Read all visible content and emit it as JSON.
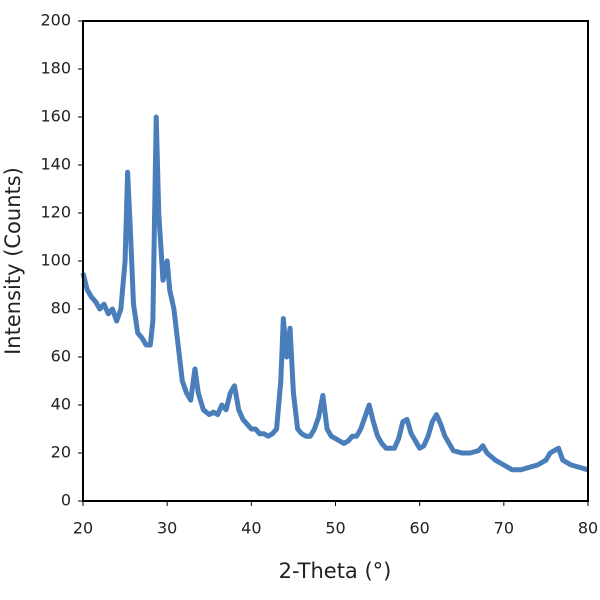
{
  "chart_data": {
    "type": "line",
    "x_label": "2-Theta (°)",
    "y_label": "Intensity (Counts)",
    "xlim": [
      20,
      80
    ],
    "xticks": [
      20,
      30,
      40,
      50,
      60,
      70,
      80
    ],
    "ylim": [
      0,
      200
    ],
    "yticks": [
      0,
      20,
      40,
      60,
      80,
      100,
      120,
      140,
      160,
      180,
      200
    ],
    "grid": false,
    "x": [
      20,
      20.5,
      21,
      21.5,
      22,
      22.5,
      23,
      23.5,
      24,
      24.5,
      25,
      25.3,
      25.6,
      26,
      26.5,
      27,
      27.5,
      28,
      28.3,
      28.7,
      29,
      29.5,
      30,
      30.3,
      30.8,
      31.3,
      31.8,
      32.3,
      32.8,
      33.3,
      33.7,
      34.3,
      35,
      35.5,
      36,
      36.5,
      37,
      37.5,
      38,
      38.5,
      39,
      39.5,
      40,
      40.5,
      41,
      41.5,
      42,
      42.5,
      43,
      43.5,
      43.8,
      44.2,
      44.6,
      45,
      45.5,
      46,
      46.5,
      47,
      47.5,
      48,
      48.5,
      49,
      49.5,
      50,
      50.5,
      51,
      51.5,
      52,
      52.5,
      53,
      53.5,
      54,
      54.5,
      55,
      55.5,
      56,
      56.5,
      57,
      57.5,
      58,
      58.5,
      59,
      59.5,
      60,
      60.5,
      61,
      61.5,
      62,
      62.5,
      63,
      63.5,
      64,
      65,
      66,
      67,
      67.5,
      68,
      69,
      70,
      71,
      72,
      73,
      74,
      75,
      75.5,
      76,
      76.5,
      77,
      78,
      79,
      80
    ],
    "series": [
      {
        "color": "#4a7ebb",
        "values": [
          95,
          88,
          85,
          83,
          80,
          82,
          78,
          80,
          75,
          80,
          100,
          137,
          115,
          82,
          70,
          68,
          65,
          65,
          75,
          160,
          120,
          92,
          100,
          88,
          80,
          65,
          50,
          45,
          42,
          55,
          45,
          38,
          36,
          37,
          36,
          40,
          38,
          45,
          48,
          38,
          34,
          32,
          30,
          30,
          28,
          28,
          27,
          28,
          30,
          50,
          76,
          60,
          72,
          45,
          30,
          28,
          27,
          27,
          30,
          35,
          44,
          30,
          27,
          26,
          25,
          24,
          25,
          27,
          27,
          30,
          35,
          40,
          33,
          27,
          24,
          22,
          22,
          22,
          26,
          33,
          34,
          28,
          25,
          22,
          23,
          27,
          33,
          36,
          32,
          27,
          24,
          21,
          20,
          20,
          21,
          23,
          20,
          17,
          15,
          13,
          13,
          14,
          15,
          17,
          20,
          21,
          22,
          17,
          15,
          14,
          13
        ]
      }
    ]
  }
}
